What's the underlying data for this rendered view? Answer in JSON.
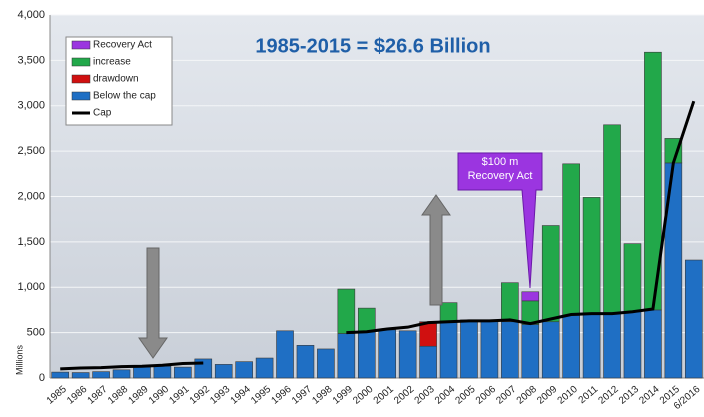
{
  "chart_data": {
    "type": "bar",
    "stacked": true,
    "title": "1985-2015 = $26.6 Billion",
    "y_label": "Millions",
    "annotation": "$100 m Recovery Act",
    "categories": [
      "1985",
      "1986",
      "1987",
      "1988",
      "1989",
      "1990",
      "1991",
      "1992",
      "1993",
      "1994",
      "1995",
      "1996",
      "1997",
      "1998",
      "1999",
      "2000",
      "2001",
      "2002",
      "2003",
      "2004",
      "2005",
      "2006",
      "2007",
      "2008",
      "2009",
      "2010",
      "2011",
      "2012",
      "2013",
      "2014",
      "2015",
      "6/2016"
    ],
    "series": [
      {
        "name": "Below the cap",
        "color": "#1f6fc4",
        "values": [
          65,
          60,
          70,
          90,
          120,
          130,
          120,
          210,
          150,
          180,
          220,
          520,
          360,
          320,
          490,
          510,
          530,
          520,
          350,
          620,
          640,
          620,
          620,
          590,
          620,
          690,
          710,
          710,
          730,
          750,
          2370,
          1300
        ]
      },
      {
        "name": "drawdown",
        "color": "#d01010",
        "values": [
          null,
          null,
          null,
          null,
          null,
          null,
          null,
          null,
          null,
          null,
          null,
          null,
          null,
          null,
          null,
          null,
          null,
          null,
          270,
          null,
          null,
          null,
          null,
          null,
          null,
          null,
          null,
          null,
          null,
          null,
          null,
          null
        ]
      },
      {
        "name": "increase",
        "color": "#22a84a",
        "values": [
          null,
          null,
          null,
          null,
          null,
          null,
          null,
          null,
          null,
          null,
          null,
          null,
          null,
          null,
          490,
          260,
          null,
          null,
          null,
          210,
          null,
          null,
          430,
          260,
          1060,
          1670,
          1280,
          2080,
          750,
          2840,
          270,
          null
        ]
      },
      {
        "name": "Recovery Act",
        "color": "#9b35e0",
        "values": [
          null,
          null,
          null,
          null,
          null,
          null,
          null,
          null,
          null,
          null,
          null,
          null,
          null,
          null,
          null,
          null,
          null,
          null,
          null,
          null,
          null,
          null,
          null,
          100,
          null,
          null,
          null,
          null,
          null,
          null,
          null,
          null
        ]
      },
      {
        "name": "Cap",
        "color": "#000000",
        "type": "line",
        "values": [
          100,
          110,
          115,
          125,
          130,
          140,
          160,
          165,
          null,
          null,
          null,
          null,
          null,
          null,
          500,
          510,
          540,
          560,
          610,
          620,
          630,
          630,
          640,
          600,
          650,
          700,
          710,
          710,
          730,
          760,
          2370,
          3050
        ]
      }
    ],
    "ylim": [
      0,
      4000
    ],
    "yticks": [
      0,
      500,
      {
        "value": 1000,
        "label": "1,000"
      },
      {
        "value": 1500,
        "label": "1,500"
      },
      {
        "value": 2000,
        "label": "2,000"
      },
      {
        "value": 2500,
        "label": "2,500"
      },
      {
        "value": 3000,
        "label": "3,000"
      },
      {
        "value": 3500,
        "label": "3,500"
      },
      {
        "value": 4000,
        "label": "4,000"
      }
    ],
    "grid": true,
    "legend": "upper left"
  }
}
